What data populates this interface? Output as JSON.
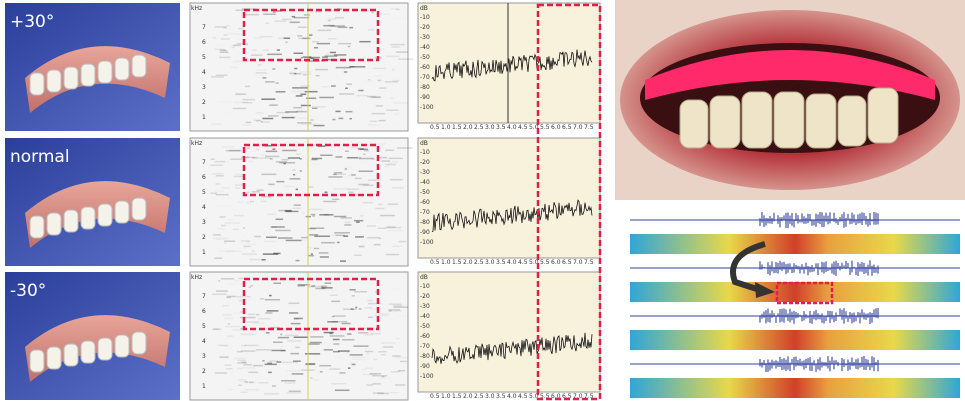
{
  "panels": [
    {
      "label": "+30°"
    },
    {
      "label": "normal"
    },
    {
      "label": "-30°"
    }
  ],
  "spectrogram": {
    "unit": "kHz",
    "ticks": [
      "1",
      "2",
      "3",
      "4",
      "5",
      "6",
      "7"
    ]
  },
  "spectrum": {
    "unit": "dB",
    "yticks": [
      "-10",
      "-20",
      "-30",
      "-40",
      "-50",
      "-60",
      "-70",
      "-80",
      "-90",
      "-100"
    ],
    "xticks": [
      "0.5",
      "1.0",
      "1.5",
      "2.0",
      "2.5",
      "3.0",
      "3.5",
      "4.0",
      "4.5",
      "5.0",
      "5.5",
      "6.0",
      "6.5",
      "7.0",
      "7.5"
    ]
  }
}
